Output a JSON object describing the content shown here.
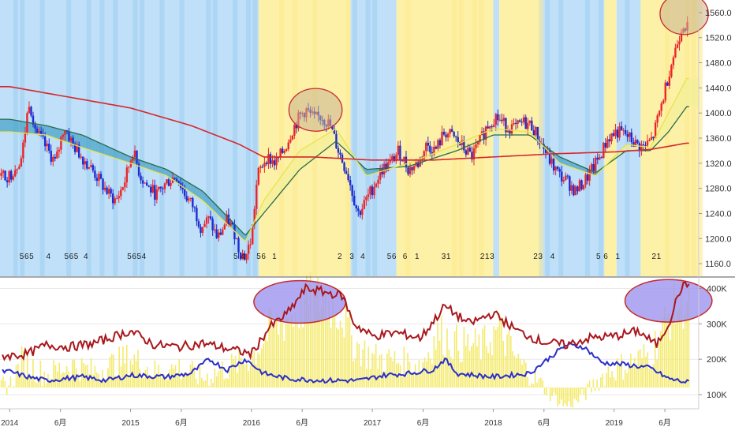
{
  "colors": {
    "bull_band": "#fdf1a8",
    "bear_band": "#bfe0f8",
    "bear_band_dark": "#9fcdf3",
    "candle_up": "#e8262b",
    "candle_down": "#1f2bd1",
    "ma_long": "#d7262c",
    "ma_mid": "#2a6b4b",
    "ma_short": "#e8e34a",
    "cloud_bear": "#4aa3c9",
    "cloud_bull": "#f3ef9a",
    "highlight_fill": "#c8b28e",
    "highlight_stroke": "#c62a2a",
    "vol_bar": "#f4ea6c",
    "line_red": "#a8171c",
    "line_blue": "#2a2fc8",
    "axis_text": "#333333",
    "ellipse_fill": "#9d95f0"
  },
  "chart_data": [
    {
      "type": "candlestick",
      "title": "",
      "ylim": [
        1140,
        1580
      ],
      "y_ticks": [
        "1160.0",
        "1200.0",
        "1240.0",
        "1280.0",
        "1320.0",
        "1360.0",
        "1400.0",
        "1440.0",
        "1480.0",
        "1520.0",
        "1560.0"
      ],
      "price_path": [
        [
          2014.0,
          1300
        ],
        [
          2014.1,
          1330
        ],
        [
          2014.16,
          1420
        ],
        [
          2014.22,
          1370
        ],
        [
          2014.3,
          1345
        ],
        [
          2014.38,
          1320
        ],
        [
          2014.45,
          1380
        ],
        [
          2014.52,
          1350
        ],
        [
          2014.6,
          1330
        ],
        [
          2014.68,
          1310
        ],
        [
          2014.75,
          1290
        ],
        [
          2014.82,
          1270
        ],
        [
          2014.88,
          1260
        ],
        [
          2014.95,
          1290
        ],
        [
          2015.02,
          1340
        ],
        [
          2015.08,
          1300
        ],
        [
          2015.15,
          1280
        ],
        [
          2015.22,
          1270
        ],
        [
          2015.3,
          1290
        ],
        [
          2015.38,
          1300
        ],
        [
          2015.45,
          1270
        ],
        [
          2015.52,
          1250
        ],
        [
          2015.58,
          1220
        ],
        [
          2015.65,
          1230
        ],
        [
          2015.72,
          1200
        ],
        [
          2015.8,
          1230
        ],
        [
          2015.86,
          1210
        ],
        [
          2015.9,
          1180
        ],
        [
          2015.95,
          1170
        ],
        [
          2016.0,
          1200
        ],
        [
          2016.05,
          1300
        ],
        [
          2016.12,
          1330
        ],
        [
          2016.2,
          1320
        ],
        [
          2016.28,
          1345
        ],
        [
          2016.33,
          1370
        ],
        [
          2016.4,
          1395
        ],
        [
          2016.45,
          1405
        ],
        [
          2016.52,
          1390
        ],
        [
          2016.58,
          1395
        ],
        [
          2016.65,
          1380
        ],
        [
          2016.72,
          1340
        ],
        [
          2016.8,
          1300
        ],
        [
          2016.88,
          1240
        ],
        [
          2016.92,
          1250
        ],
        [
          2017.0,
          1280
        ],
        [
          2017.08,
          1310
        ],
        [
          2017.15,
          1320
        ],
        [
          2017.22,
          1340
        ],
        [
          2017.3,
          1310
        ],
        [
          2017.38,
          1320
        ],
        [
          2017.45,
          1350
        ],
        [
          2017.52,
          1340
        ],
        [
          2017.6,
          1370
        ],
        [
          2017.68,
          1360
        ],
        [
          2017.75,
          1345
        ],
        [
          2017.82,
          1330
        ],
        [
          2017.88,
          1350
        ],
        [
          2017.95,
          1380
        ],
        [
          2018.02,
          1395
        ],
        [
          2018.1,
          1380
        ],
        [
          2018.18,
          1375
        ],
        [
          2018.25,
          1385
        ],
        [
          2018.32,
          1380
        ],
        [
          2018.4,
          1350
        ],
        [
          2018.48,
          1320
        ],
        [
          2018.55,
          1300
        ],
        [
          2018.62,
          1290
        ],
        [
          2018.68,
          1275
        ],
        [
          2018.75,
          1290
        ],
        [
          2018.82,
          1310
        ],
        [
          2018.88,
          1330
        ],
        [
          2018.95,
          1360
        ],
        [
          2019.02,
          1370
        ],
        [
          2019.1,
          1365
        ],
        [
          2019.18,
          1350
        ],
        [
          2019.25,
          1345
        ],
        [
          2019.32,
          1360
        ],
        [
          2019.4,
          1420
        ],
        [
          2019.46,
          1470
        ],
        [
          2019.52,
          1510
        ],
        [
          2019.57,
          1545
        ],
        [
          2019.6,
          1535
        ]
      ],
      "moving_averages": [
        {
          "series": "long",
          "points": [
            [
              2014.0,
              1442
            ],
            [
              2014.5,
              1425
            ],
            [
              2015.0,
              1408
            ],
            [
              2015.5,
              1380
            ],
            [
              2015.9,
              1350
            ],
            [
              2016.1,
              1330
            ],
            [
              2016.5,
              1330
            ],
            [
              2017.0,
              1325
            ],
            [
              2017.5,
              1325
            ],
            [
              2018.0,
              1330
            ],
            [
              2018.5,
              1335
            ],
            [
              2019.0,
              1338
            ],
            [
              2019.3,
              1342
            ],
            [
              2019.6,
              1352
            ]
          ]
        },
        {
          "series": "mid",
          "points": [
            [
              2014.0,
              1390
            ],
            [
              2014.3,
              1380
            ],
            [
              2014.6,
              1365
            ],
            [
              2015.0,
              1330
            ],
            [
              2015.3,
              1310
            ],
            [
              2015.6,
              1275
            ],
            [
              2015.95,
              1205
            ],
            [
              2016.1,
              1240
            ],
            [
              2016.4,
              1310
            ],
            [
              2016.7,
              1355
            ],
            [
              2016.95,
              1310
            ],
            [
              2017.3,
              1315
            ],
            [
              2017.7,
              1340
            ],
            [
              2018.0,
              1365
            ],
            [
              2018.3,
              1365
            ],
            [
              2018.55,
              1330
            ],
            [
              2018.85,
              1305
            ],
            [
              2019.1,
              1340
            ],
            [
              2019.3,
              1340
            ],
            [
              2019.45,
              1370
            ],
            [
              2019.6,
              1410
            ]
          ]
        },
        {
          "series": "short",
          "points": [
            [
              2014.0,
              1370
            ],
            [
              2014.3,
              1365
            ],
            [
              2014.6,
              1345
            ],
            [
              2015.0,
              1320
            ],
            [
              2015.3,
              1300
            ],
            [
              2015.6,
              1260
            ],
            [
              2015.95,
              1195
            ],
            [
              2016.1,
              1260
            ],
            [
              2016.4,
              1340
            ],
            [
              2016.7,
              1375
            ],
            [
              2016.95,
              1300
            ],
            [
              2017.3,
              1320
            ],
            [
              2017.7,
              1350
            ],
            [
              2018.0,
              1375
            ],
            [
              2018.3,
              1370
            ],
            [
              2018.55,
              1320
            ],
            [
              2018.85,
              1300
            ],
            [
              2019.1,
              1350
            ],
            [
              2019.3,
              1345
            ],
            [
              2019.45,
              1400
            ],
            [
              2019.6,
              1455
            ]
          ]
        }
      ],
      "highlights": [
        {
          "center": [
            2016.53,
            1405
          ],
          "rx": 0.22,
          "ry": 34
        },
        {
          "center": [
            2019.58,
            1558
          ],
          "rx": 0.2,
          "ry": 33
        }
      ]
    },
    {
      "type": "bar_line",
      "ylim": [
        60000,
        430000
      ],
      "y_ticks": [
        "100K",
        "200K",
        "300K",
        "400K"
      ],
      "x_ticks": [
        {
          "label": "2014",
          "x": 2014.0
        },
        {
          "label": "6月",
          "x": 2014.42
        },
        {
          "label": "2015",
          "x": 2015.0
        },
        {
          "label": "6月",
          "x": 2015.42
        },
        {
          "label": "2016",
          "x": 2016.0
        },
        {
          "label": "6月",
          "x": 2016.42
        },
        {
          "label": "2017",
          "x": 2017.0
        },
        {
          "label": "6月",
          "x": 2017.42
        },
        {
          "label": "2018",
          "x": 2018.0
        },
        {
          "label": "6月",
          "x": 2018.42
        },
        {
          "label": "2019",
          "x": 2019.0
        },
        {
          "label": "6月",
          "x": 2019.42
        }
      ],
      "red_line": [
        [
          2014.0,
          210000
        ],
        [
          2014.15,
          215000
        ],
        [
          2014.3,
          240000
        ],
        [
          2014.5,
          235000
        ],
        [
          2014.7,
          245000
        ],
        [
          2015.0,
          280000
        ],
        [
          2015.2,
          240000
        ],
        [
          2015.4,
          235000
        ],
        [
          2015.6,
          245000
        ],
        [
          2015.8,
          230000
        ],
        [
          2016.0,
          215000
        ],
        [
          2016.15,
          290000
        ],
        [
          2016.3,
          330000
        ],
        [
          2016.45,
          400000
        ],
        [
          2016.6,
          390000
        ],
        [
          2016.75,
          380000
        ],
        [
          2016.85,
          300000
        ],
        [
          2017.0,
          265000
        ],
        [
          2017.2,
          275000
        ],
        [
          2017.4,
          260000
        ],
        [
          2017.6,
          350000
        ],
        [
          2017.8,
          300000
        ],
        [
          2018.0,
          330000
        ],
        [
          2018.2,
          280000
        ],
        [
          2018.4,
          250000
        ],
        [
          2018.6,
          240000
        ],
        [
          2018.8,
          260000
        ],
        [
          2019.0,
          265000
        ],
        [
          2019.2,
          280000
        ],
        [
          2019.35,
          240000
        ],
        [
          2019.45,
          300000
        ],
        [
          2019.55,
          400000
        ],
        [
          2019.6,
          410000
        ]
      ],
      "blue_line": [
        [
          2014.0,
          165000
        ],
        [
          2014.15,
          150000
        ],
        [
          2014.3,
          140000
        ],
        [
          2014.6,
          150000
        ],
        [
          2014.8,
          140000
        ],
        [
          2015.0,
          155000
        ],
        [
          2015.3,
          150000
        ],
        [
          2015.5,
          160000
        ],
        [
          2015.65,
          200000
        ],
        [
          2015.8,
          170000
        ],
        [
          2015.95,
          200000
        ],
        [
          2016.1,
          160000
        ],
        [
          2016.3,
          145000
        ],
        [
          2016.6,
          140000
        ],
        [
          2016.9,
          140000
        ],
        [
          2017.1,
          155000
        ],
        [
          2017.3,
          160000
        ],
        [
          2017.5,
          170000
        ],
        [
          2017.6,
          200000
        ],
        [
          2017.7,
          160000
        ],
        [
          2018.0,
          150000
        ],
        [
          2018.3,
          160000
        ],
        [
          2018.45,
          200000
        ],
        [
          2018.6,
          240000
        ],
        [
          2018.75,
          235000
        ],
        [
          2018.9,
          190000
        ],
        [
          2019.1,
          185000
        ],
        [
          2019.3,
          175000
        ],
        [
          2019.45,
          145000
        ],
        [
          2019.6,
          135000
        ]
      ],
      "bar_profile": [
        [
          2014.0,
          130000
        ],
        [
          2014.1,
          200000
        ],
        [
          2014.3,
          160000
        ],
        [
          2014.5,
          190000
        ],
        [
          2014.7,
          170000
        ],
        [
          2015.0,
          210000
        ],
        [
          2015.2,
          170000
        ],
        [
          2015.4,
          180000
        ],
        [
          2015.6,
          150000
        ],
        [
          2015.8,
          180000
        ],
        [
          2016.0,
          210000
        ],
        [
          2016.15,
          290000
        ],
        [
          2016.3,
          320000
        ],
        [
          2016.45,
          370000
        ],
        [
          2016.6,
          380000
        ],
        [
          2016.75,
          340000
        ],
        [
          2016.85,
          250000
        ],
        [
          2017.0,
          210000
        ],
        [
          2017.2,
          200000
        ],
        [
          2017.4,
          190000
        ],
        [
          2017.55,
          280000
        ],
        [
          2017.7,
          250000
        ],
        [
          2017.9,
          240000
        ],
        [
          2018.05,
          290000
        ],
        [
          2018.2,
          200000
        ],
        [
          2018.35,
          150000
        ],
        [
          2018.5,
          95000
        ],
        [
          2018.6,
          70000
        ],
        [
          2018.7,
          85000
        ],
        [
          2018.8,
          120000
        ],
        [
          2018.95,
          170000
        ],
        [
          2019.1,
          190000
        ],
        [
          2019.3,
          220000
        ],
        [
          2019.45,
          330000
        ],
        [
          2019.55,
          370000
        ],
        [
          2019.6,
          380000
        ]
      ],
      "highlights": [
        {
          "center": [
            2016.4,
            362000
          ],
          "rx": 0.38,
          "ry": 60000
        },
        {
          "center": [
            2019.45,
            365000
          ],
          "rx": 0.36,
          "ry": 60000
        }
      ]
    }
  ],
  "band_segments": [
    {
      "from": 2013.92,
      "to": 2016.06,
      "kind": "bear"
    },
    {
      "from": 2016.06,
      "to": 2016.55,
      "kind": "bull"
    },
    {
      "from": 2016.55,
      "to": 2016.82,
      "kind": "bull"
    },
    {
      "from": 2016.82,
      "to": 2017.2,
      "kind": "bear"
    },
    {
      "from": 2017.2,
      "to": 2017.28,
      "kind": "bull"
    },
    {
      "from": 2017.28,
      "to": 2018.0,
      "kind": "bull"
    },
    {
      "from": 2018.0,
      "to": 2018.05,
      "kind": "bear"
    },
    {
      "from": 2018.05,
      "to": 2018.38,
      "kind": "bull"
    },
    {
      "from": 2018.38,
      "to": 2018.92,
      "kind": "bear"
    },
    {
      "from": 2018.92,
      "to": 2019.02,
      "kind": "bull"
    },
    {
      "from": 2019.02,
      "to": 2019.22,
      "kind": "bear"
    },
    {
      "from": 2019.22,
      "to": 2019.7,
      "kind": "bull"
    }
  ],
  "count_labels": [
    {
      "text": "5",
      "x": 2014.1
    },
    {
      "text": "6",
      "x": 2014.14
    },
    {
      "text": "5",
      "x": 2014.18
    },
    {
      "text": "4",
      "x": 2014.32
    },
    {
      "text": "5",
      "x": 2014.47
    },
    {
      "text": "6",
      "x": 2014.51
    },
    {
      "text": "5",
      "x": 2014.55
    },
    {
      "text": "4",
      "x": 2014.63
    },
    {
      "text": "5",
      "x": 2014.99
    },
    {
      "text": "6",
      "x": 2015.03
    },
    {
      "text": "5",
      "x": 2015.07
    },
    {
      "text": "4",
      "x": 2015.11
    },
    {
      "text": "5",
      "x": 2015.87
    },
    {
      "text": "4",
      "x": 2015.93
    },
    {
      "text": "5",
      "x": 2016.06
    },
    {
      "text": "6",
      "x": 2016.1
    },
    {
      "text": "1",
      "x": 2016.19
    },
    {
      "text": "2",
      "x": 2016.73
    },
    {
      "text": "3",
      "x": 2016.83
    },
    {
      "text": "4",
      "x": 2016.92
    },
    {
      "text": "5",
      "x": 2017.14
    },
    {
      "text": "6",
      "x": 2017.18
    },
    {
      "text": "6",
      "x": 2017.27
    },
    {
      "text": "1",
      "x": 2017.37
    },
    {
      "text": "3",
      "x": 2017.59
    },
    {
      "text": "1",
      "x": 2017.63
    },
    {
      "text": "2",
      "x": 2017.91
    },
    {
      "text": "1",
      "x": 2017.95
    },
    {
      "text": "3",
      "x": 2017.99
    },
    {
      "text": "2",
      "x": 2018.35
    },
    {
      "text": "3",
      "x": 2018.39
    },
    {
      "text": "4",
      "x": 2018.49
    },
    {
      "text": "5",
      "x": 2018.87
    },
    {
      "text": "6",
      "x": 2018.93
    },
    {
      "text": "1",
      "x": 2019.03
    },
    {
      "text": "2",
      "x": 2019.33
    },
    {
      "text": "1",
      "x": 2019.37
    }
  ]
}
